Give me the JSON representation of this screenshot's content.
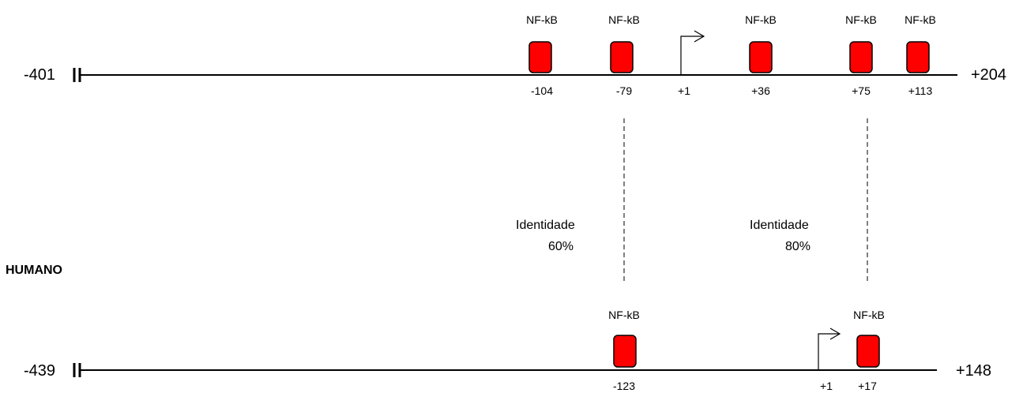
{
  "upper_sequence": {
    "start": "-401",
    "end": "+204",
    "tss": "+1",
    "sites": [
      {
        "label": "NF-kB",
        "position": "-104"
      },
      {
        "label": "NF-kB",
        "position": "-79"
      },
      {
        "label": "NF-kB",
        "position": "+36"
      },
      {
        "label": "NF-kB",
        "position": "+75"
      },
      {
        "label": "NF-kB",
        "position": "+113"
      }
    ]
  },
  "lower_sequence": {
    "species": "HUMANO",
    "start": "-439",
    "end": "+148",
    "tss": "+1",
    "sites": [
      {
        "label": "NF-kB",
        "position": "-123"
      },
      {
        "label": "NF-kB",
        "position": "+17"
      }
    ]
  },
  "identities": [
    {
      "label": "Identidade",
      "value": "60%"
    },
    {
      "label": "Identidade",
      "value": "80%"
    }
  ],
  "colors": {
    "site_fill": "#ff0000",
    "line": "#000000"
  }
}
